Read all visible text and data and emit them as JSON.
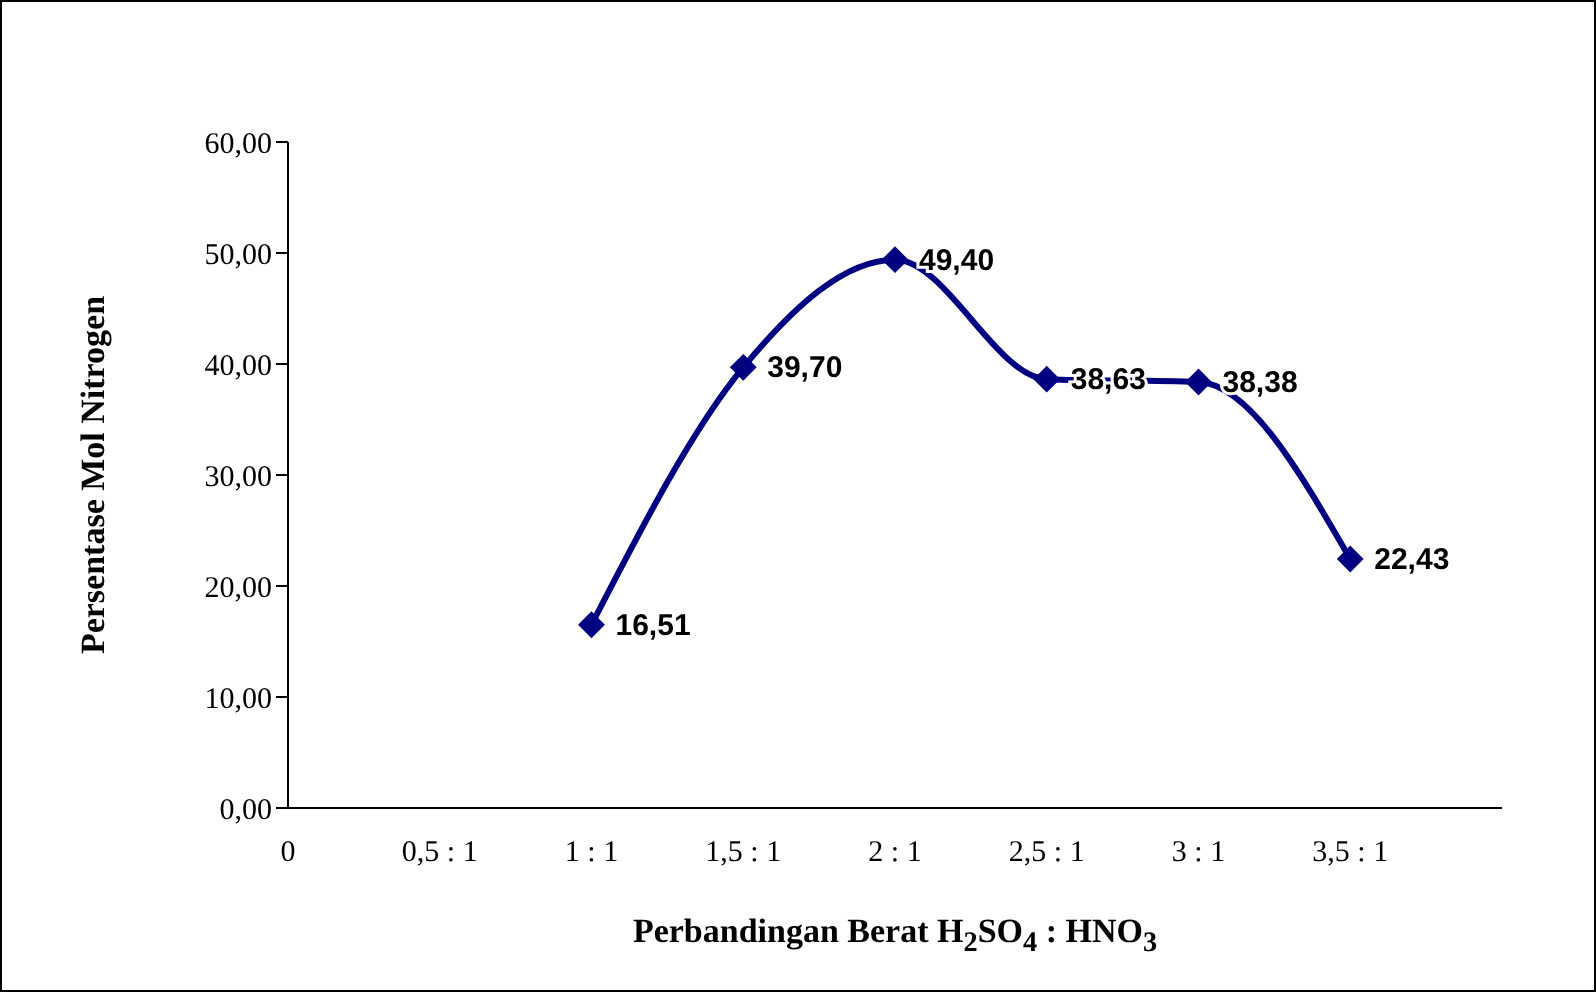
{
  "chart_data": {
    "type": "line",
    "xlabel": "Perbandingan Berat H$_{2}$SO$_{4}$ : HNO$_{3}$",
    "ylabel": "Persentase Mol Nitrogen",
    "categories": [
      "0",
      "0,5 : 1",
      "1 : 1",
      "1,5 : 1",
      "2 : 1",
      "2,5 : 1",
      "3 : 1",
      "3,5 : 1"
    ],
    "series": [
      {
        "color": "#000080",
        "values": [
          null,
          null,
          16.51,
          39.7,
          49.4,
          38.63,
          38.38,
          22.43
        ],
        "value_labels": [
          null,
          null,
          "16,51",
          "39,70",
          "49,40",
          "38,63",
          "38,38",
          "22,43"
        ]
      }
    ],
    "ylim": [
      0,
      60
    ],
    "yticks": [
      {
        "value": 0,
        "label": "0,00"
      },
      {
        "value": 10,
        "label": "10,00"
      },
      {
        "value": 20,
        "label": "20,00"
      },
      {
        "value": 30,
        "label": "30,00"
      },
      {
        "value": 40,
        "label": "40,00"
      },
      {
        "value": 50,
        "label": "50,00"
      },
      {
        "value": 60,
        "label": "60,00"
      }
    ],
    "grid": false,
    "legend": false,
    "marker": "diamond",
    "line_style": "solid"
  }
}
